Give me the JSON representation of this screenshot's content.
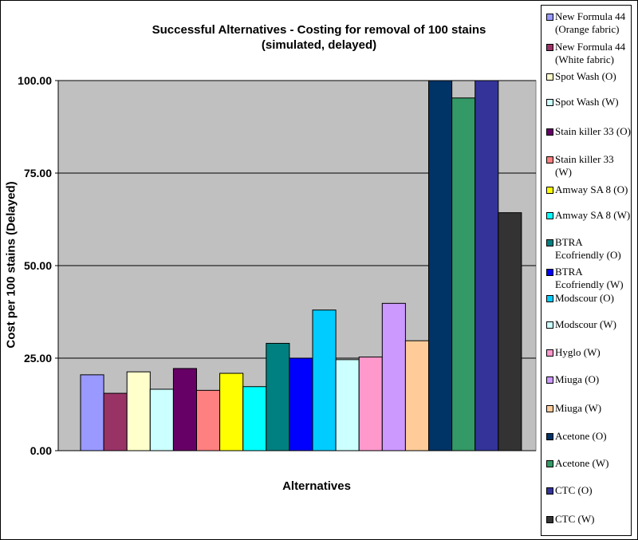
{
  "chart_data": {
    "type": "bar",
    "title": "Successful Alternatives - Costing for removal of 100 stains",
    "subtitle": "(simulated, delayed)",
    "xlabel": "Alternatives",
    "ylabel": "Cost per 100 stains (Delayed)",
    "ylim": [
      0,
      100
    ],
    "yticks": [
      "0.00",
      "25.00",
      "50.00",
      "75.00",
      "100.00"
    ],
    "grid": true,
    "legend_position": "right",
    "series": [
      {
        "name": "New Formula 44 (Orange fabric)",
        "value": 20.5,
        "color": "#9999ff"
      },
      {
        "name": "New Formula 44 (White fabric)",
        "value": 15.5,
        "color": "#993366"
      },
      {
        "name": "Spot Wash (O)",
        "value": 21.3,
        "color": "#ffffcc"
      },
      {
        "name": "Spot Wash (W)",
        "value": 16.6,
        "color": "#ccffff"
      },
      {
        "name": "Stain killer 33 (O)",
        "value": 22.2,
        "color": "#660066"
      },
      {
        "name": "Stain killer 33 (W)",
        "value": 16.3,
        "color": "#ff8080"
      },
      {
        "name": "Amway SA 8 (O)",
        "value": 20.9,
        "color": "#ffff00"
      },
      {
        "name": "Amway SA 8 (W)",
        "value": 17.3,
        "color": "#00ffff"
      },
      {
        "name": "BTRA Ecofriendly (O)",
        "value": 29.0,
        "color": "#008080"
      },
      {
        "name": "BTRA Ecofriendly (W)",
        "value": 25.0,
        "color": "#0000ff"
      },
      {
        "name": "Modscour (O)",
        "value": 38.0,
        "color": "#00ccff"
      },
      {
        "name": "Modscour (W)",
        "value": 24.6,
        "color": "#ccffff"
      },
      {
        "name": "Hyglo (W)",
        "value": 25.3,
        "color": "#ff99cc"
      },
      {
        "name": "Miuga (O)",
        "value": 39.8,
        "color": "#cc99ff"
      },
      {
        "name": "Miuga (W)",
        "value": 29.7,
        "color": "#ffcc99"
      },
      {
        "name": "Acetone (O)",
        "value": 100.0,
        "color": "#003366"
      },
      {
        "name": "Acetone (W)",
        "value": 95.3,
        "color": "#339966"
      },
      {
        "name": "CTC (O)",
        "value": 100.0,
        "color": "#333399"
      },
      {
        "name": "CTC (W)",
        "value": 64.3,
        "color": "#333333"
      }
    ]
  }
}
